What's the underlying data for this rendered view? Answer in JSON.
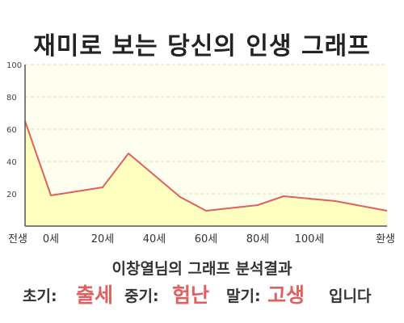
{
  "title": "재미로 보는 당신의 인생 그래프",
  "chart_data": {
    "type": "area",
    "x": [
      -10,
      0,
      20,
      30,
      50,
      60,
      80,
      90,
      110,
      130
    ],
    "x_tick_values": [
      -10,
      0,
      20,
      40,
      60,
      80,
      100,
      130
    ],
    "x_tick_labels": [
      "전생",
      "0세",
      "20세",
      "40세",
      "60세",
      "80세",
      "100세",
      "환생"
    ],
    "series": [
      {
        "values": [
          65,
          19,
          24,
          45,
          18,
          9.5,
          13,
          18.5,
          15.5,
          9.5
        ]
      }
    ],
    "ylim": [
      0,
      100
    ],
    "y_ticks": [
      20,
      40,
      60,
      80,
      100
    ],
    "grid": true,
    "colors": {
      "line": "#e06060",
      "fill": "#ffffc0",
      "plot_bg": "#fffff0",
      "grid": "#ddd8b0"
    }
  },
  "summary": {
    "text": "이창열님의 그래프 분석결과"
  },
  "result": {
    "early_label": "초기:",
    "early_value": "출세",
    "mid_label": "중기:",
    "mid_value": "험난",
    "late_label": "말기:",
    "late_value": "고생",
    "ending": "입니다"
  }
}
